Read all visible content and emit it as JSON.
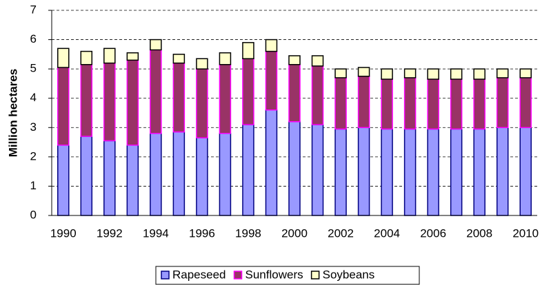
{
  "chart_data": {
    "type": "stacked-bar",
    "y_label": "Million hectares",
    "categories": [
      "1990",
      null,
      "1992",
      null,
      "1994",
      null,
      "1996",
      null,
      "1998",
      null,
      "2000",
      null,
      "2002",
      null,
      "2004",
      null,
      "2006",
      null,
      "2008",
      null,
      "2010"
    ],
    "series": [
      {
        "name": "Rapeseed",
        "color": "#9999ff",
        "edgecolor": "#000080",
        "values": [
          2.4,
          2.7,
          2.55,
          2.4,
          2.8,
          2.85,
          2.65,
          2.8,
          3.1,
          3.6,
          3.2,
          3.1,
          2.95,
          3.0,
          2.95,
          2.95,
          2.95,
          2.95,
          2.95,
          3.0,
          3.0
        ]
      },
      {
        "name": "Sunflowers",
        "color": "#993366",
        "edgecolor": "#ff00ff",
        "values": [
          2.65,
          2.45,
          2.65,
          2.9,
          2.85,
          2.35,
          2.35,
          2.35,
          2.25,
          2.0,
          1.95,
          2.0,
          1.75,
          1.75,
          1.7,
          1.75,
          1.7,
          1.7,
          1.7,
          1.7,
          1.7
        ]
      },
      {
        "name": "Soybeans",
        "color": "#ffffcc",
        "edgecolor": "#000000",
        "values": [
          0.65,
          0.45,
          0.5,
          0.25,
          0.35,
          0.3,
          0.35,
          0.4,
          0.55,
          0.4,
          0.3,
          0.35,
          0.3,
          0.3,
          0.35,
          0.3,
          0.35,
          0.35,
          0.35,
          0.3,
          0.3
        ]
      }
    ],
    "ylim": [
      0,
      7
    ],
    "yticks": [
      0,
      1,
      2,
      3,
      4,
      5,
      6,
      7
    ],
    "grid": true,
    "legend": "bottom"
  }
}
